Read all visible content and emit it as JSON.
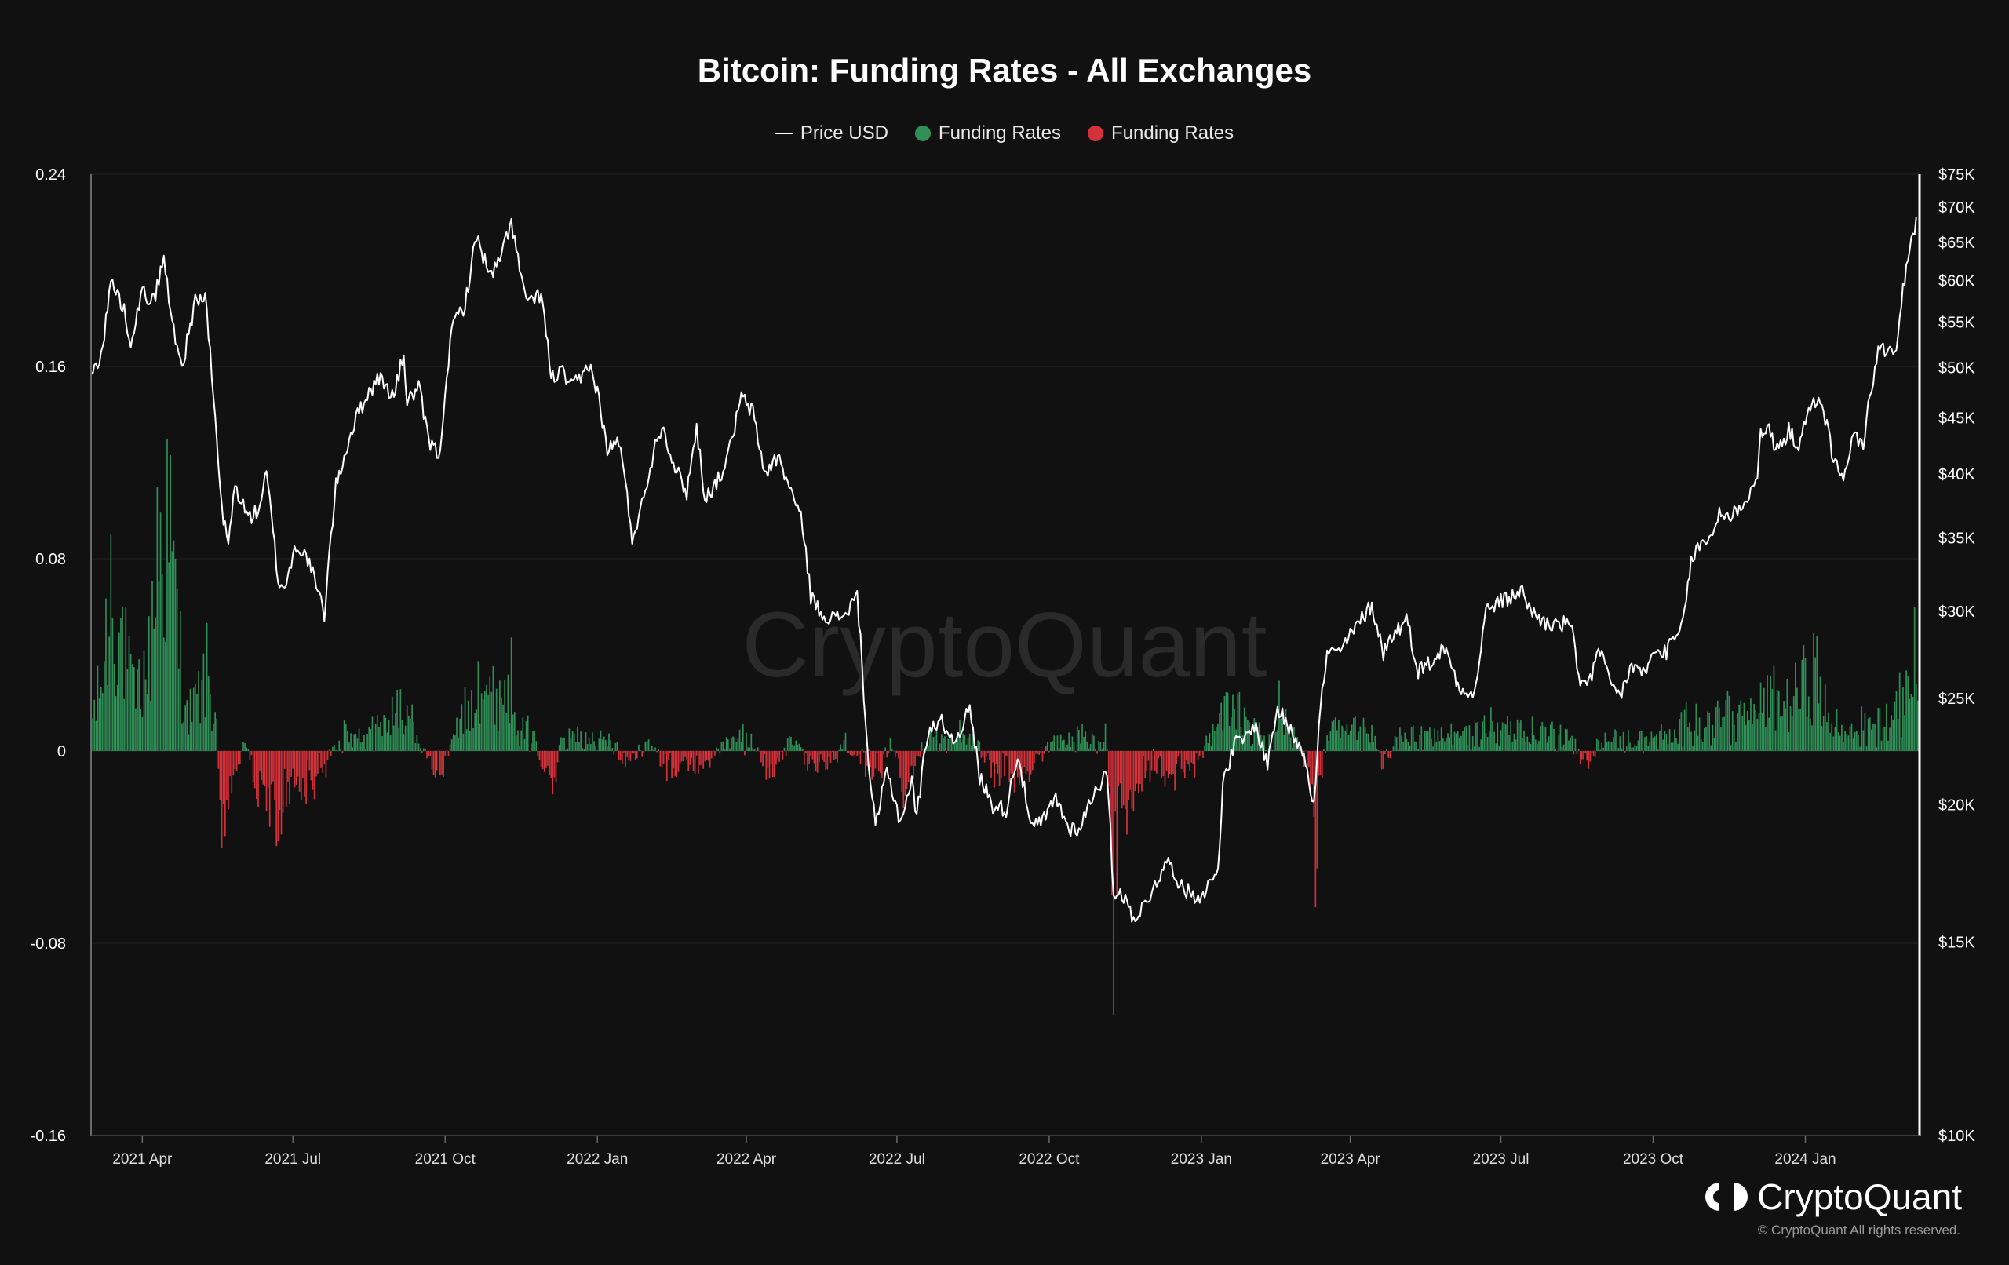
{
  "chart_data": {
    "type": "bar",
    "title": "Bitcoin: Funding Rates - All Exchanges",
    "watermark": "CryptoQuant",
    "legend": [
      {
        "label": "Price USD",
        "kind": "line",
        "color": "#ffffff"
      },
      {
        "label": "Funding Rates",
        "kind": "dot",
        "color": "#2f8f57"
      },
      {
        "label": "Funding Rates",
        "kind": "dot",
        "color": "#d3323a"
      }
    ],
    "legend_position": "top-center",
    "left_axis": {
      "ticks": [
        "0.24",
        "0.16",
        "0.08",
        "0",
        "-0.08",
        "-0.16"
      ],
      "tick_values": [
        0.24,
        0.16,
        0.08,
        0,
        -0.08,
        -0.16
      ],
      "range": [
        -0.16,
        0.24
      ]
    },
    "right_axis": {
      "scale": "log",
      "ticks": [
        "$75K",
        "$70K",
        "$65K",
        "$60K",
        "$55K",
        "$50K",
        "$45K",
        "$40K",
        "$35K",
        "$30K",
        "$25K",
        "$20K",
        "$15K",
        "$10K"
      ],
      "tick_values": [
        75000,
        70000,
        65000,
        60000,
        55000,
        50000,
        45000,
        40000,
        35000,
        30000,
        25000,
        20000,
        15000,
        10000
      ],
      "range": [
        10000,
        75000
      ]
    },
    "x_axis": {
      "ticks": [
        "2021 Apr",
        "2021 Jul",
        "2021 Oct",
        "2022 Jan",
        "2022 Apr",
        "2022 Jul",
        "2022 Oct",
        "2023 Jan",
        "2023 Apr",
        "2023 Jul",
        "2023 Oct",
        "2024 Jan"
      ],
      "tick_dates": [
        "2021-04-01",
        "2021-07-01",
        "2021-10-01",
        "2022-01-01",
        "2022-04-01",
        "2022-07-01",
        "2022-10-01",
        "2023-01-01",
        "2023-04-01",
        "2023-07-01",
        "2023-10-01",
        "2024-01-01"
      ],
      "range": [
        "2021-03-01",
        "2024-03-10"
      ]
    },
    "grid": true,
    "colors": {
      "positive": "#2f8f57",
      "negative": "#d3323a",
      "price": "#ffffff"
    },
    "price_series": [
      [
        "2021-03-01",
        49000
      ],
      [
        "2021-03-08",
        52000
      ],
      [
        "2021-03-13",
        60000
      ],
      [
        "2021-03-20",
        57000
      ],
      [
        "2021-03-25",
        53000
      ],
      [
        "2021-04-01",
        58500
      ],
      [
        "2021-04-08",
        57500
      ],
      [
        "2021-04-14",
        63000
      ],
      [
        "2021-04-18",
        56000
      ],
      [
        "2021-04-25",
        50000
      ],
      [
        "2021-05-03",
        57500
      ],
      [
        "2021-05-09",
        58000
      ],
      [
        "2021-05-13",
        49000
      ],
      [
        "2021-05-19",
        37000
      ],
      [
        "2021-05-23",
        34500
      ],
      [
        "2021-05-27",
        39000
      ],
      [
        "2021-06-04",
        36500
      ],
      [
        "2021-06-10",
        37000
      ],
      [
        "2021-06-15",
        40000
      ],
      [
        "2021-06-22",
        32000
      ],
      [
        "2021-06-26",
        31500
      ],
      [
        "2021-07-03",
        34500
      ],
      [
        "2021-07-10",
        33500
      ],
      [
        "2021-07-20",
        29800
      ],
      [
        "2021-07-27",
        39000
      ],
      [
        "2021-08-07",
        44500
      ],
      [
        "2021-08-14",
        47000
      ],
      [
        "2021-08-22",
        49000
      ],
      [
        "2021-08-31",
        47000
      ],
      [
        "2021-09-06",
        51500
      ],
      [
        "2021-09-08",
        46500
      ],
      [
        "2021-09-15",
        48000
      ],
      [
        "2021-09-21",
        42800
      ],
      [
        "2021-09-28",
        41500
      ],
      [
        "2021-10-01",
        48000
      ],
      [
        "2021-10-06",
        55000
      ],
      [
        "2021-10-13",
        57000
      ],
      [
        "2021-10-20",
        66000
      ],
      [
        "2021-10-28",
        60500
      ],
      [
        "2021-11-03",
        62500
      ],
      [
        "2021-11-10",
        68000
      ],
      [
        "2021-11-16",
        60000
      ],
      [
        "2021-11-21",
        57000
      ],
      [
        "2021-11-28",
        58500
      ],
      [
        "2021-12-04",
        49000
      ],
      [
        "2021-12-11",
        49500
      ],
      [
        "2021-12-16",
        48000
      ],
      [
        "2021-12-22",
        48800
      ],
      [
        "2021-12-27",
        50500
      ],
      [
        "2022-01-01",
        47500
      ],
      [
        "2022-01-07",
        42000
      ],
      [
        "2022-01-14",
        43000
      ],
      [
        "2022-01-22",
        35000
      ],
      [
        "2022-01-28",
        37500
      ],
      [
        "2022-02-07",
        43800
      ],
      [
        "2022-02-10",
        44000
      ],
      [
        "2022-02-17",
        40500
      ],
      [
        "2022-02-24",
        38500
      ],
      [
        "2022-03-02",
        44000
      ],
      [
        "2022-03-07",
        38000
      ],
      [
        "2022-03-15",
        39500
      ],
      [
        "2022-03-21",
        41500
      ],
      [
        "2022-03-29",
        47000
      ],
      [
        "2022-04-05",
        45500
      ],
      [
        "2022-04-12",
        40000
      ],
      [
        "2022-04-20",
        41500
      ],
      [
        "2022-04-27",
        39000
      ],
      [
        "2022-05-05",
        36000
      ],
      [
        "2022-05-10",
        31000
      ],
      [
        "2022-05-15",
        30000
      ],
      [
        "2022-05-25",
        29500
      ],
      [
        "2022-06-01",
        30000
      ],
      [
        "2022-06-07",
        31000
      ],
      [
        "2022-06-13",
        22500
      ],
      [
        "2022-06-18",
        19000
      ],
      [
        "2022-06-25",
        21500
      ],
      [
        "2022-07-03",
        19300
      ],
      [
        "2022-07-10",
        21000
      ],
      [
        "2022-07-13",
        19500
      ],
      [
        "2022-07-20",
        23500
      ],
      [
        "2022-07-29",
        23800
      ],
      [
        "2022-08-04",
        22800
      ],
      [
        "2022-08-14",
        24400
      ],
      [
        "2022-08-20",
        21200
      ],
      [
        "2022-08-28",
        20000
      ],
      [
        "2022-09-05",
        19800
      ],
      [
        "2022-09-12",
        22300
      ],
      [
        "2022-09-20",
        19000
      ],
      [
        "2022-09-28",
        19400
      ],
      [
        "2022-10-05",
        20300
      ],
      [
        "2022-10-13",
        19000
      ],
      [
        "2022-10-20",
        19100
      ],
      [
        "2022-10-29",
        20700
      ],
      [
        "2022-11-05",
        21300
      ],
      [
        "2022-11-09",
        16500
      ],
      [
        "2022-11-12",
        16800
      ],
      [
        "2022-11-21",
        15800
      ],
      [
        "2022-11-28",
        16200
      ],
      [
        "2022-12-05",
        17100
      ],
      [
        "2022-12-13",
        17800
      ],
      [
        "2022-12-20",
        16800
      ],
      [
        "2022-12-30",
        16500
      ],
      [
        "2023-01-06",
        16900
      ],
      [
        "2023-01-11",
        17500
      ],
      [
        "2023-01-14",
        20800
      ],
      [
        "2023-01-21",
        22700
      ],
      [
        "2023-01-28",
        23000
      ],
      [
        "2023-02-02",
        23700
      ],
      [
        "2023-02-10",
        21800
      ],
      [
        "2023-02-16",
        24500
      ],
      [
        "2023-02-25",
        23200
      ],
      [
        "2023-03-04",
        22400
      ],
      [
        "2023-03-10",
        20000
      ],
      [
        "2023-03-14",
        24500
      ],
      [
        "2023-03-18",
        27500
      ],
      [
        "2023-03-25",
        27500
      ],
      [
        "2023-04-01",
        28500
      ],
      [
        "2023-04-11",
        30000
      ],
      [
        "2023-04-14",
        30400
      ],
      [
        "2023-04-21",
        27500
      ],
      [
        "2023-04-26",
        28500
      ],
      [
        "2023-05-05",
        29500
      ],
      [
        "2023-05-12",
        26500
      ],
      [
        "2023-05-20",
        27000
      ],
      [
        "2023-05-28",
        27800
      ],
      [
        "2023-06-05",
        25800
      ],
      [
        "2023-06-15",
        25100
      ],
      [
        "2023-06-22",
        30000
      ],
      [
        "2023-06-28",
        30500
      ],
      [
        "2023-07-06",
        30800
      ],
      [
        "2023-07-13",
        31400
      ],
      [
        "2023-07-20",
        29900
      ],
      [
        "2023-07-28",
        29300
      ],
      [
        "2023-08-05",
        29100
      ],
      [
        "2023-08-12",
        29400
      ],
      [
        "2023-08-17",
        26000
      ],
      [
        "2023-08-25",
        26100
      ],
      [
        "2023-08-29",
        27700
      ],
      [
        "2023-09-05",
        25800
      ],
      [
        "2023-09-11",
        25100
      ],
      [
        "2023-09-18",
        26800
      ],
      [
        "2023-09-25",
        26300
      ],
      [
        "2023-10-02",
        27500
      ],
      [
        "2023-10-09",
        27600
      ],
      [
        "2023-10-16",
        28500
      ],
      [
        "2023-10-20",
        29700
      ],
      [
        "2023-10-24",
        33500
      ],
      [
        "2023-10-30",
        34500
      ],
      [
        "2023-11-05",
        35000
      ],
      [
        "2023-11-10",
        37000
      ],
      [
        "2023-11-16",
        36500
      ],
      [
        "2023-11-25",
        37700
      ],
      [
        "2023-12-03",
        39500
      ],
      [
        "2023-12-05",
        44000
      ],
      [
        "2023-12-10",
        43700
      ],
      [
        "2023-12-15",
        42000
      ],
      [
        "2023-12-22",
        43800
      ],
      [
        "2023-12-28",
        42500
      ],
      [
        "2024-01-02",
        45000
      ],
      [
        "2024-01-08",
        46900
      ],
      [
        "2024-01-11",
        46500
      ],
      [
        "2024-01-18",
        41300
      ],
      [
        "2024-01-23",
        39500
      ],
      [
        "2024-01-30",
        43300
      ],
      [
        "2024-02-05",
        42700
      ],
      [
        "2024-02-09",
        47000
      ],
      [
        "2024-02-14",
        51700
      ],
      [
        "2024-02-20",
        52000
      ],
      [
        "2024-02-25",
        51500
      ],
      [
        "2024-02-28",
        57000
      ],
      [
        "2024-03-02",
        62000
      ],
      [
        "2024-03-06",
        66000
      ],
      [
        "2024-03-08",
        68000
      ]
    ],
    "funding_anchors": [
      [
        "2021-03-01",
        0.01
      ],
      [
        "2021-03-08",
        0.045
      ],
      [
        "2021-03-13",
        0.09
      ],
      [
        "2021-03-20",
        0.06
      ],
      [
        "2021-03-27",
        0.03
      ],
      [
        "2021-04-05",
        0.05
      ],
      [
        "2021-04-10",
        0.11
      ],
      [
        "2021-04-16",
        0.13
      ],
      [
        "2021-04-21",
        0.08
      ],
      [
        "2021-04-28",
        0.02
      ],
      [
        "2021-05-05",
        0.03
      ],
      [
        "2021-05-10",
        0.045
      ],
      [
        "2021-05-16",
        0.01
      ],
      [
        "2021-05-20",
        -0.05
      ],
      [
        "2021-05-25",
        -0.015
      ],
      [
        "2021-06-03",
        0.005
      ],
      [
        "2021-06-10",
        -0.02
      ],
      [
        "2021-06-16",
        -0.025
      ],
      [
        "2021-06-22",
        -0.035
      ],
      [
        "2021-06-30",
        -0.02
      ],
      [
        "2021-07-10",
        -0.015
      ],
      [
        "2021-07-20",
        -0.01
      ],
      [
        "2021-07-28",
        0.005
      ],
      [
        "2021-08-05",
        0.01
      ],
      [
        "2021-08-14",
        0.008
      ],
      [
        "2021-08-24",
        0.012
      ],
      [
        "2021-09-01",
        0.018
      ],
      [
        "2021-09-07",
        0.03
      ],
      [
        "2021-09-12",
        0.01
      ],
      [
        "2021-09-21",
        -0.005
      ],
      [
        "2021-09-28",
        -0.01
      ],
      [
        "2021-10-04",
        0.003
      ],
      [
        "2021-10-10",
        0.012
      ],
      [
        "2021-10-16",
        0.025
      ],
      [
        "2021-10-21",
        0.048
      ],
      [
        "2021-10-28",
        0.03
      ],
      [
        "2021-11-05",
        0.035
      ],
      [
        "2021-11-10",
        0.04
      ],
      [
        "2021-11-16",
        0.01
      ],
      [
        "2021-11-25",
        0.006
      ],
      [
        "2021-12-04",
        -0.03
      ],
      [
        "2021-12-10",
        0.005
      ],
      [
        "2021-12-20",
        0.006
      ],
      [
        "2022-01-05",
        0.005
      ],
      [
        "2022-01-20",
        -0.005
      ],
      [
        "2022-02-01",
        0.004
      ],
      [
        "2022-02-15",
        -0.01
      ],
      [
        "2022-02-25",
        -0.006
      ],
      [
        "2022-03-08",
        -0.007
      ],
      [
        "2022-03-20",
        0.003
      ],
      [
        "2022-04-01",
        0.006
      ],
      [
        "2022-04-15",
        -0.008
      ],
      [
        "2022-04-28",
        0.004
      ],
      [
        "2022-05-10",
        -0.006
      ],
      [
        "2022-05-20",
        -0.008
      ],
      [
        "2022-06-01",
        0.004
      ],
      [
        "2022-06-13",
        -0.008
      ],
      [
        "2022-06-20",
        -0.012
      ],
      [
        "2022-06-28",
        0.006
      ],
      [
        "2022-07-05",
        -0.014
      ],
      [
        "2022-07-18",
        0.004
      ],
      [
        "2022-08-01",
        0.006
      ],
      [
        "2022-08-14",
        0.007
      ],
      [
        "2022-08-28",
        -0.008
      ],
      [
        "2022-09-10",
        -0.012
      ],
      [
        "2022-09-22",
        -0.006
      ],
      [
        "2022-10-05",
        0.004
      ],
      [
        "2022-10-20",
        0.006
      ],
      [
        "2022-11-01",
        0.004
      ],
      [
        "2022-11-05",
        0.007
      ],
      [
        "2022-11-09",
        -0.11
      ],
      [
        "2022-11-11",
        -0.06
      ],
      [
        "2022-11-15",
        -0.04
      ],
      [
        "2022-11-22",
        -0.012
      ],
      [
        "2022-12-01",
        -0.008
      ],
      [
        "2022-12-12",
        -0.01
      ],
      [
        "2022-12-24",
        -0.01
      ],
      [
        "2023-01-05",
        0.004
      ],
      [
        "2023-01-15",
        0.018
      ],
      [
        "2023-01-22",
        0.02
      ],
      [
        "2023-02-01",
        0.008
      ],
      [
        "2023-02-12",
        0.004
      ],
      [
        "2023-02-18",
        0.022
      ],
      [
        "2023-02-26",
        0.008
      ],
      [
        "2023-03-08",
        -0.01
      ],
      [
        "2023-03-11",
        -0.065
      ],
      [
        "2023-03-14",
        -0.01
      ],
      [
        "2023-03-20",
        0.01
      ],
      [
        "2023-04-01",
        0.008
      ],
      [
        "2023-04-12",
        0.01
      ],
      [
        "2023-04-20",
        -0.005
      ],
      [
        "2023-05-01",
        0.006
      ],
      [
        "2023-05-15",
        0.008
      ],
      [
        "2023-06-01",
        0.007
      ],
      [
        "2023-06-15",
        0.008
      ],
      [
        "2023-06-25",
        0.012
      ],
      [
        "2023-07-10",
        0.01
      ],
      [
        "2023-07-25",
        0.008
      ],
      [
        "2023-08-10",
        0.008
      ],
      [
        "2023-08-20",
        -0.006
      ],
      [
        "2023-09-01",
        0.006
      ],
      [
        "2023-09-15",
        0.004
      ],
      [
        "2023-10-01",
        0.006
      ],
      [
        "2023-10-15",
        0.005
      ],
      [
        "2023-10-24",
        0.018
      ],
      [
        "2023-11-05",
        0.012
      ],
      [
        "2023-11-15",
        0.02
      ],
      [
        "2023-11-25",
        0.014
      ],
      [
        "2023-12-05",
        0.025
      ],
      [
        "2023-12-12",
        0.03
      ],
      [
        "2023-12-22",
        0.026
      ],
      [
        "2024-01-02",
        0.04
      ],
      [
        "2024-01-08",
        0.045
      ],
      [
        "2024-01-14",
        0.015
      ],
      [
        "2024-01-24",
        0.008
      ],
      [
        "2024-02-02",
        0.01
      ],
      [
        "2024-02-12",
        0.012
      ],
      [
        "2024-02-22",
        0.016
      ],
      [
        "2024-02-28",
        0.02
      ],
      [
        "2024-03-04",
        0.045
      ],
      [
        "2024-03-07",
        0.06
      ],
      [
        "2024-03-09",
        0.035
      ]
    ]
  },
  "brand": {
    "name": "CryptoQuant",
    "copyright": "© CryptoQuant All rights reserved."
  }
}
